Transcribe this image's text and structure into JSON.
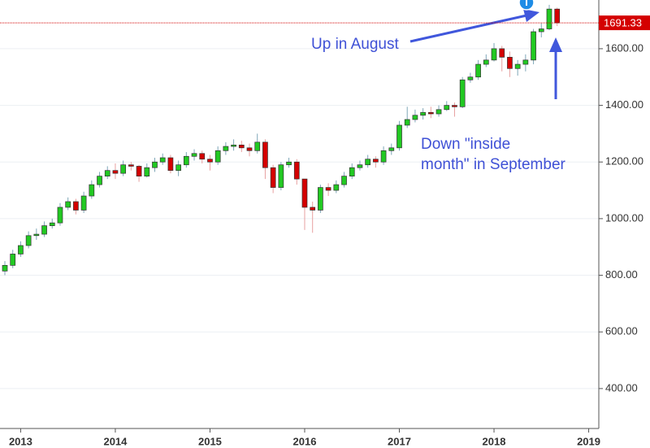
{
  "chart_data": {
    "type": "candlestick",
    "categories": [
      null,
      null,
      "2013",
      null,
      null,
      null,
      null,
      null,
      null,
      null,
      null,
      null,
      null,
      null,
      "2014",
      null,
      null,
      null,
      null,
      null,
      null,
      null,
      null,
      null,
      null,
      null,
      "2015",
      null,
      null,
      null,
      null,
      null,
      null,
      null,
      null,
      null,
      null,
      null,
      "2016",
      null,
      null,
      null,
      null,
      null,
      null,
      null,
      null,
      null,
      null,
      null,
      "2017",
      null,
      null,
      null,
      null,
      null,
      null,
      null,
      null,
      null,
      null,
      null,
      "2018",
      null,
      null,
      null,
      null,
      null,
      null,
      null,
      null,
      null,
      null,
      null,
      "2019"
    ],
    "open": [
      815,
      835,
      875,
      905,
      940,
      945,
      975,
      985,
      1040,
      1060,
      1030,
      1080,
      1120,
      1150,
      1170,
      1160,
      1190,
      1185,
      1150,
      1180,
      1200,
      1215,
      1170,
      1190,
      1220,
      1230,
      1210,
      1200,
      1240,
      1255,
      1260,
      1250,
      1240,
      1270,
      1180,
      1110,
      1190,
      1200,
      1140,
      1040,
      1030,
      1110,
      1100,
      1120,
      1150,
      1180,
      1190,
      1210,
      1200,
      1240,
      1250,
      1330,
      1350,
      1365,
      1375,
      1370,
      1385,
      1400,
      1395,
      1490,
      1500,
      1545,
      1560,
      1600,
      1570,
      1530,
      1545,
      1560,
      1660,
      1670,
      1740,
      null,
      null,
      null,
      null
    ],
    "high": [
      850,
      890,
      920,
      955,
      965,
      990,
      1000,
      1055,
      1075,
      1070,
      1095,
      1135,
      1165,
      1185,
      1195,
      1205,
      1200,
      1190,
      1195,
      1215,
      1230,
      1225,
      1205,
      1235,
      1245,
      1240,
      1225,
      1255,
      1270,
      1280,
      1275,
      1265,
      1300,
      1280,
      1190,
      1200,
      1215,
      1210,
      1140,
      1060,
      1120,
      1125,
      1135,
      1165,
      1195,
      1205,
      1225,
      1220,
      1255,
      1265,
      1345,
      1395,
      1385,
      1390,
      1395,
      1400,
      1415,
      1410,
      1500,
      1515,
      1560,
      1580,
      1620,
      1610,
      1590,
      1560,
      1580,
      1670,
      1690,
      1755,
      1745,
      null,
      null,
      null,
      null
    ],
    "low": [
      800,
      825,
      865,
      895,
      925,
      935,
      965,
      975,
      1030,
      1015,
      1020,
      1070,
      1110,
      1140,
      1140,
      1150,
      1170,
      1130,
      1145,
      1165,
      1190,
      1160,
      1150,
      1180,
      1205,
      1195,
      1170,
      1190,
      1225,
      1240,
      1235,
      1220,
      1230,
      1140,
      1090,
      1100,
      1180,
      1120,
      960,
      950,
      1020,
      1080,
      1090,
      1110,
      1140,
      1170,
      1180,
      1180,
      1190,
      1225,
      1240,
      1320,
      1340,
      1350,
      1355,
      1360,
      1380,
      1360,
      1390,
      1480,
      1490,
      1535,
      1555,
      1520,
      1500,
      1505,
      1520,
      1545,
      1640,
      1665,
      1680,
      null,
      null,
      null,
      null
    ],
    "close": [
      835,
      875,
      905,
      940,
      945,
      975,
      985,
      1040,
      1060,
      1030,
      1080,
      1120,
      1150,
      1170,
      1160,
      1190,
      1185,
      1150,
      1180,
      1200,
      1215,
      1170,
      1190,
      1220,
      1230,
      1210,
      1200,
      1240,
      1255,
      1260,
      1250,
      1240,
      1270,
      1180,
      1110,
      1190,
      1200,
      1140,
      1040,
      1030,
      1110,
      1100,
      1120,
      1150,
      1180,
      1190,
      1210,
      1200,
      1240,
      1250,
      1330,
      1350,
      1365,
      1375,
      1370,
      1385,
      1400,
      1395,
      1490,
      1500,
      1545,
      1560,
      1600,
      1570,
      1530,
      1545,
      1560,
      1660,
      1670,
      1740,
      1691.33,
      null,
      null,
      null,
      null
    ],
    "up_color": "#22c922",
    "down_color": "#d40000",
    "ylim": [
      259,
      1772
    ],
    "yticks": [
      {
        "value": 400,
        "label": "400.00"
      },
      {
        "value": 600,
        "label": "600.00"
      },
      {
        "value": 800,
        "label": "800.00"
      },
      {
        "value": 1000,
        "label": "1000.00"
      },
      {
        "value": 1200,
        "label": "1200.00"
      },
      {
        "value": 1400,
        "label": "1400.00"
      },
      {
        "value": 1600,
        "label": "1600.00"
      }
    ],
    "grid": true,
    "annotations": [
      {
        "text": "Up in August"
      },
      {
        "lines": [
          "Down \"inside",
          "month\" in September"
        ]
      }
    ]
  }
}
